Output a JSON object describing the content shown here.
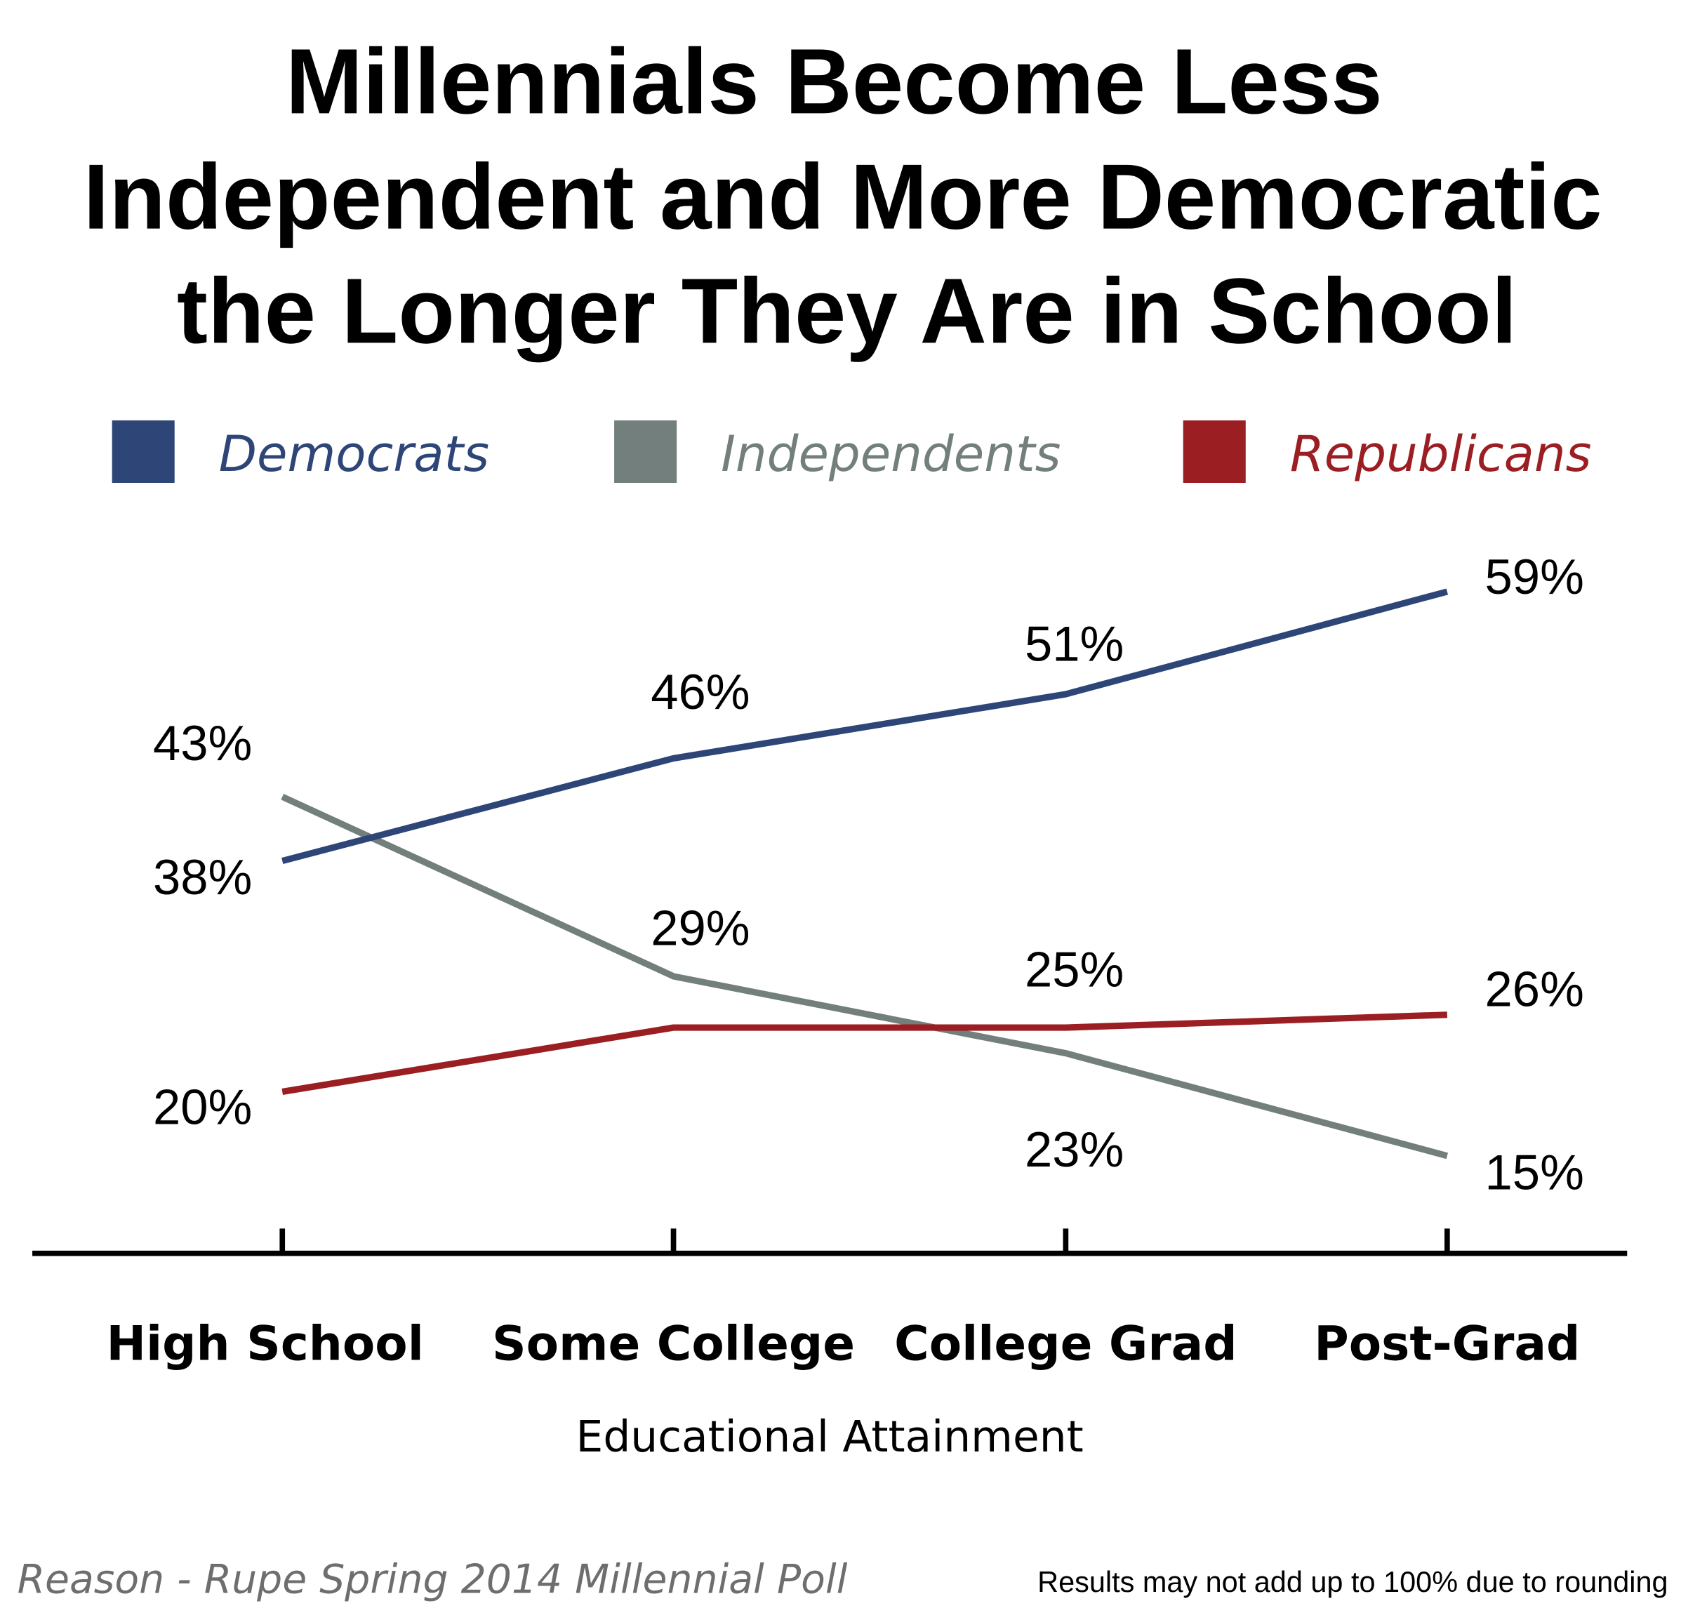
{
  "chart_data": {
    "type": "line",
    "title": [
      "Millennials Become Less",
      "Independent and More Democratic",
      "the Longer They Are in School"
    ],
    "xlabel": "Educational Attainment",
    "ylabel": "",
    "categories": [
      "High School",
      "Some College",
      "College Grad",
      "Post-Grad"
    ],
    "legend_placement": "top",
    "grid": false,
    "series": [
      {
        "name": "Democrats",
        "color": "#2e4577",
        "values": [
          38,
          46,
          51,
          59
        ],
        "labels": [
          "38%",
          "46%",
          "51%",
          "59%"
        ]
      },
      {
        "name": "Independents",
        "color": "#737f7d",
        "values": [
          43,
          29,
          23,
          15
        ],
        "labels": [
          "43%",
          "29%",
          "23%",
          "15%"
        ]
      },
      {
        "name": "Republicans",
        "color": "#9b1e23",
        "values": [
          20,
          25,
          25,
          26
        ],
        "labels": [
          "20%",
          null,
          "25%",
          "26%"
        ]
      }
    ]
  },
  "footer": {
    "source": "Reason - Rupe Spring 2014 Millennial Poll",
    "note": "Results may not add up to 100% due to rounding"
  }
}
